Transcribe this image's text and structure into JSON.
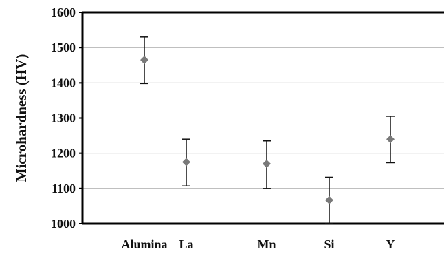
{
  "chart_data": {
    "type": "scatter",
    "title": "",
    "xlabel": "",
    "ylabel": "Microhardness (HV)",
    "ylim": [
      1000,
      1600
    ],
    "yticks": [
      1000,
      1100,
      1200,
      1300,
      1400,
      1500,
      1600
    ],
    "grid": true,
    "legend": "none",
    "marker": "diamond",
    "categories": [
      "Alumina",
      "La",
      "Mn",
      "Si",
      "Y"
    ],
    "series": [
      {
        "values": [
          1465,
          1175,
          1170,
          1067,
          1240
        ],
        "error_low": [
          1398,
          1107,
          1100,
          1000,
          1173
        ],
        "error_high": [
          1530,
          1240,
          1235,
          1132,
          1305
        ]
      }
    ],
    "colors": {
      "marker": "#7a7a7a",
      "errorbar": "#111111",
      "grid": "#999999",
      "axis": "#000000"
    }
  }
}
